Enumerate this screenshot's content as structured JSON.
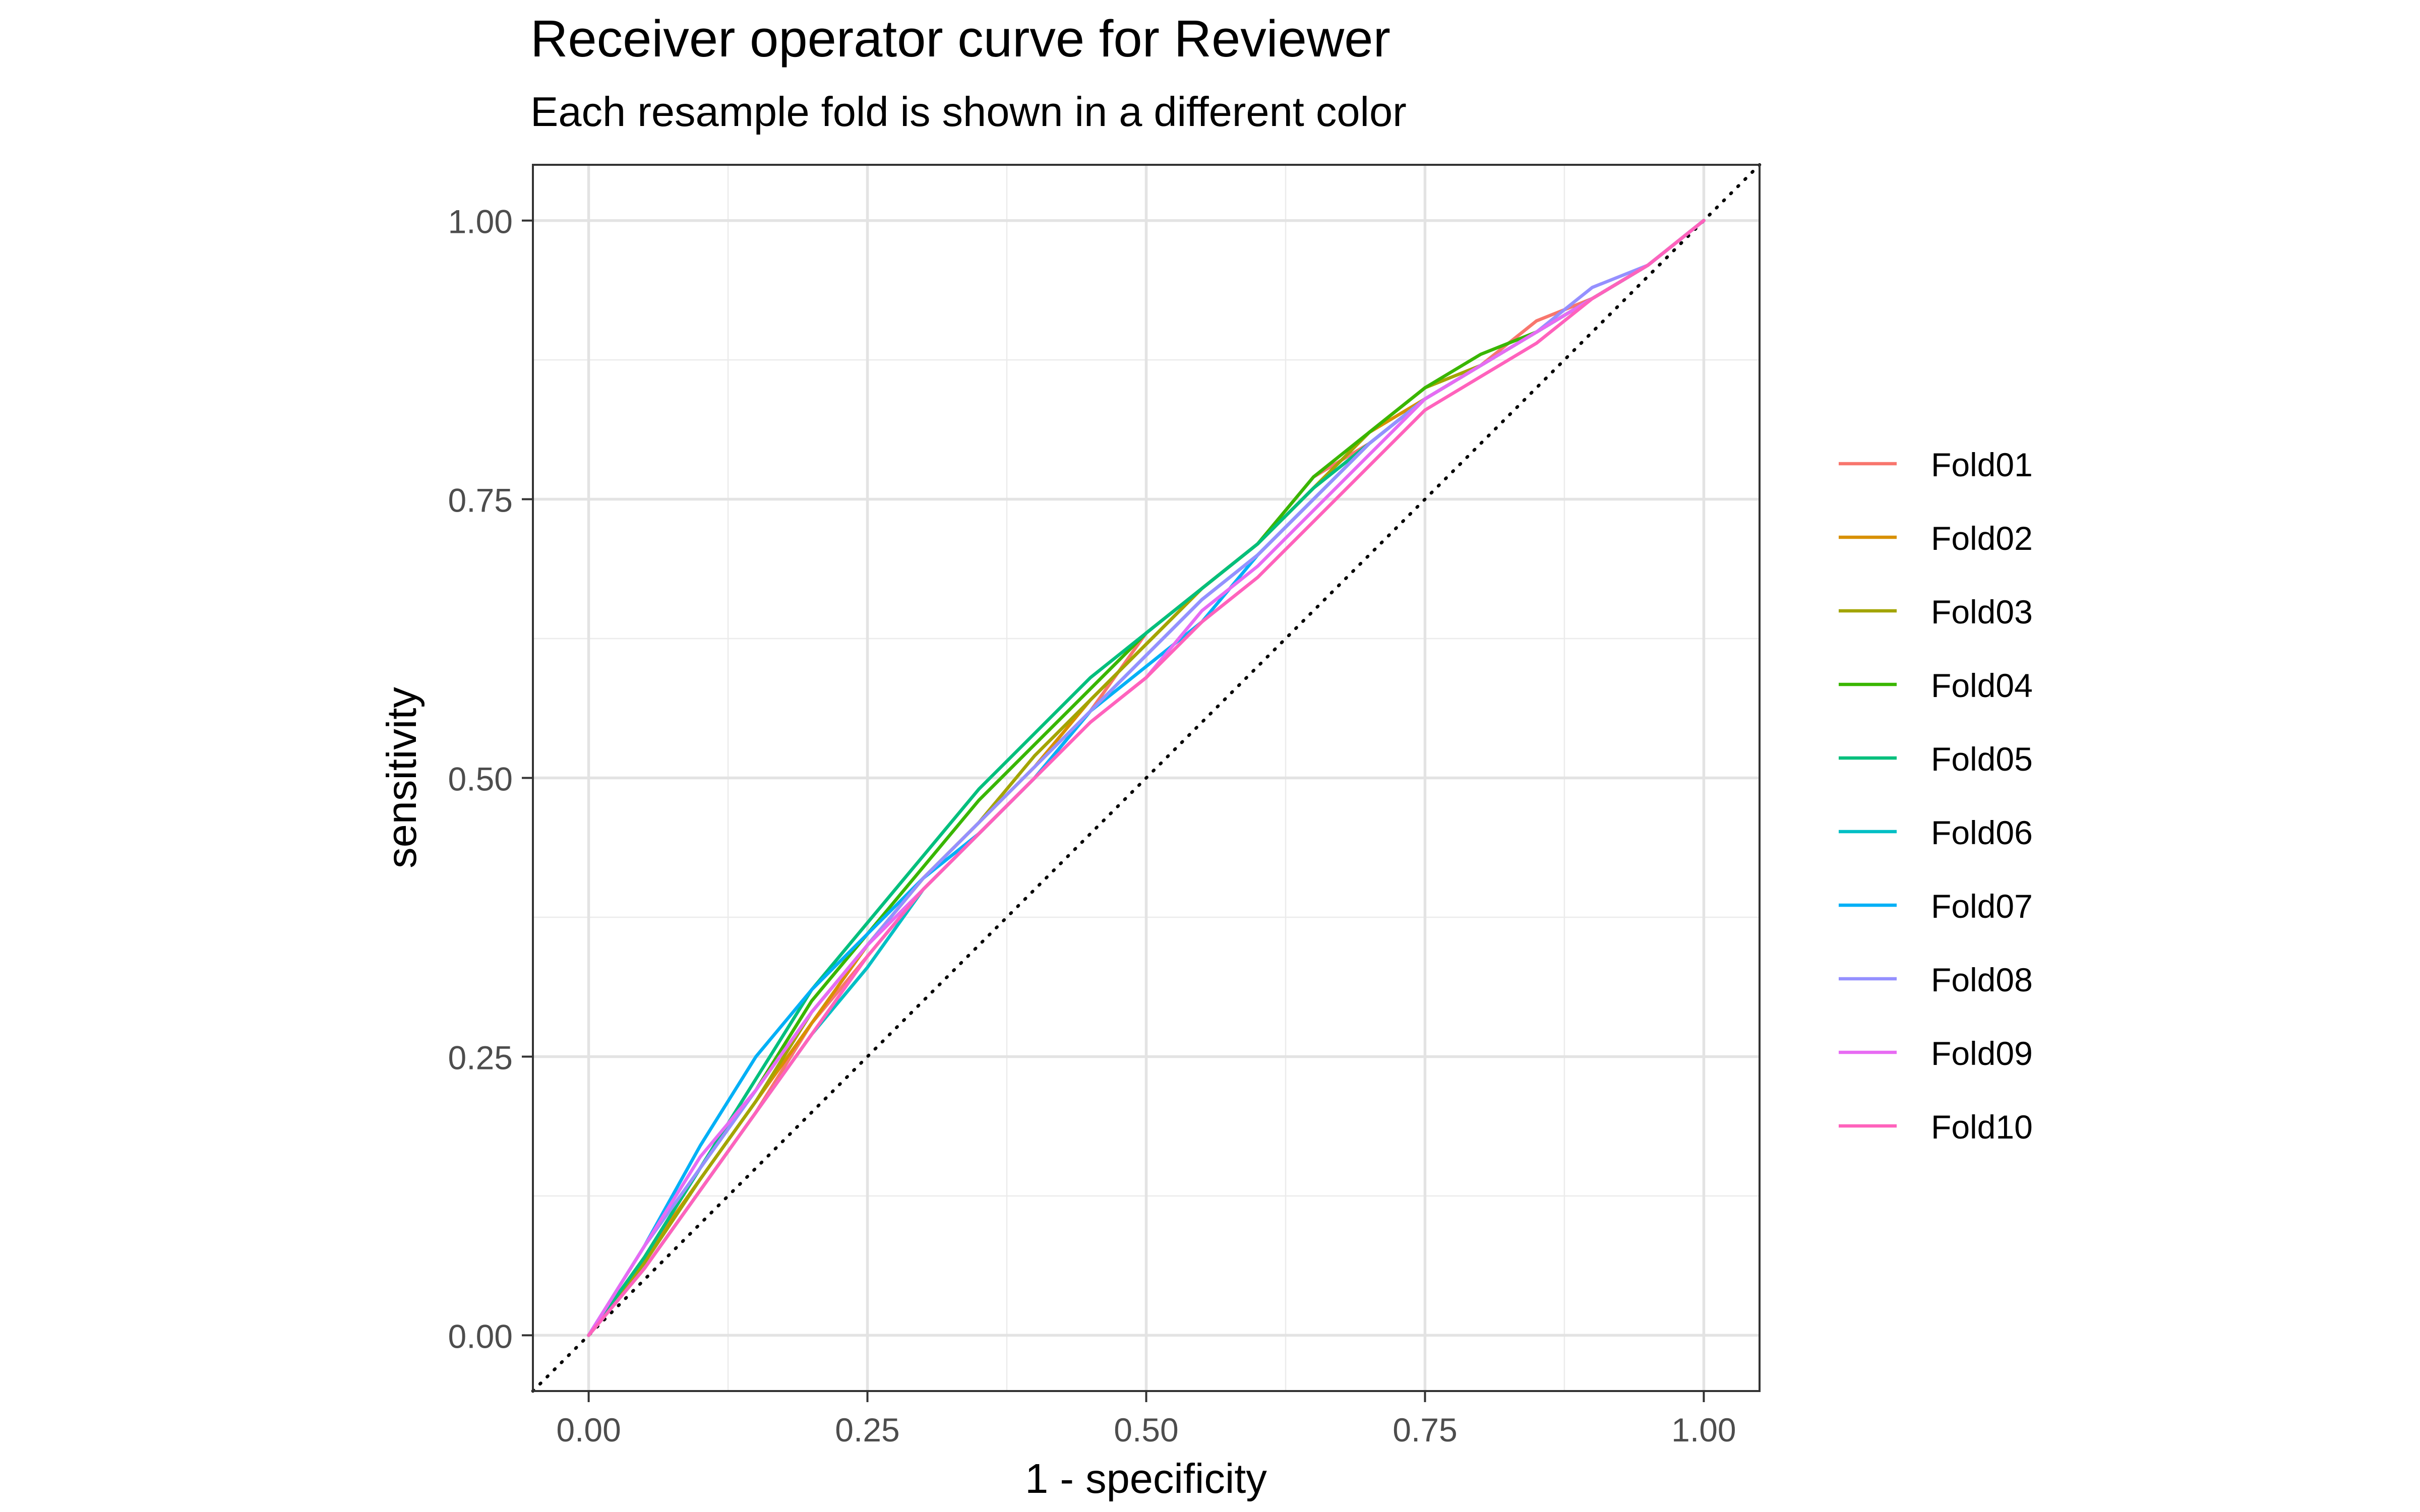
{
  "chart_data": {
    "type": "line",
    "title": "Receiver operator curve for Reviewer",
    "subtitle": "Each resample fold is shown in a different color",
    "xlabel": "1 - specificity",
    "ylabel": "sensitivity",
    "xlim": [
      -0.05,
      1.05
    ],
    "ylim": [
      -0.05,
      1.05
    ],
    "x_ticks": [
      "0.00",
      "0.25",
      "0.50",
      "0.75",
      "1.00"
    ],
    "y_ticks": [
      "0.00",
      "0.25",
      "0.50",
      "0.75",
      "1.00"
    ],
    "grid": true,
    "legend_position": "right",
    "reference_line": {
      "style": "dotted",
      "from": [
        -0.05,
        -0.05
      ],
      "to": [
        1.05,
        1.05
      ]
    },
    "series": [
      {
        "name": "Fold01",
        "color": "#F8766D",
        "x": [
          0,
          0.05,
          0.1,
          0.15,
          0.2,
          0.25,
          0.3,
          0.35,
          0.4,
          0.45,
          0.5,
          0.55,
          0.6,
          0.65,
          0.7,
          0.75,
          0.8,
          0.85,
          0.9,
          0.95,
          1
        ],
        "y": [
          0,
          0.06,
          0.13,
          0.2,
          0.28,
          0.34,
          0.4,
          0.45,
          0.5,
          0.56,
          0.63,
          0.67,
          0.71,
          0.77,
          0.8,
          0.84,
          0.87,
          0.91,
          0.93,
          0.96,
          1
        ]
      },
      {
        "name": "Fold02",
        "color": "#D89000",
        "x": [
          0,
          0.05,
          0.1,
          0.15,
          0.2,
          0.25,
          0.3,
          0.35,
          0.4,
          0.45,
          0.5,
          0.55,
          0.6,
          0.65,
          0.7,
          0.75,
          0.8,
          0.85,
          0.9,
          0.95,
          1
        ],
        "y": [
          0,
          0.07,
          0.14,
          0.21,
          0.28,
          0.35,
          0.41,
          0.46,
          0.51,
          0.57,
          0.62,
          0.67,
          0.71,
          0.76,
          0.81,
          0.84,
          0.87,
          0.9,
          0.93,
          0.96,
          1
        ]
      },
      {
        "name": "Fold03",
        "color": "#A3A500",
        "x": [
          0,
          0.05,
          0.1,
          0.15,
          0.2,
          0.25,
          0.3,
          0.35,
          0.4,
          0.45,
          0.5,
          0.55,
          0.6,
          0.65,
          0.7,
          0.75,
          0.8,
          0.85,
          0.9,
          0.95,
          1
        ],
        "y": [
          0,
          0.065,
          0.14,
          0.21,
          0.29,
          0.35,
          0.41,
          0.46,
          0.52,
          0.57,
          0.62,
          0.67,
          0.71,
          0.76,
          0.81,
          0.85,
          0.87,
          0.9,
          0.93,
          0.96,
          1
        ]
      },
      {
        "name": "Fold04",
        "color": "#39B600",
        "x": [
          0,
          0.05,
          0.1,
          0.15,
          0.2,
          0.25,
          0.3,
          0.35,
          0.4,
          0.45,
          0.5,
          0.55,
          0.6,
          0.65,
          0.7,
          0.75,
          0.8,
          0.85,
          0.9,
          0.95,
          1
        ],
        "y": [
          0,
          0.07,
          0.15,
          0.22,
          0.3,
          0.36,
          0.42,
          0.48,
          0.53,
          0.58,
          0.63,
          0.67,
          0.71,
          0.77,
          0.81,
          0.85,
          0.88,
          0.9,
          0.93,
          0.96,
          1
        ]
      },
      {
        "name": "Fold05",
        "color": "#00BF7D",
        "x": [
          0,
          0.05,
          0.1,
          0.15,
          0.2,
          0.25,
          0.3,
          0.35,
          0.4,
          0.45,
          0.5,
          0.55,
          0.6,
          0.65,
          0.7,
          0.75,
          0.8,
          0.85,
          0.9,
          0.95,
          1
        ],
        "y": [
          0,
          0.07,
          0.15,
          0.23,
          0.31,
          0.37,
          0.43,
          0.49,
          0.54,
          0.59,
          0.63,
          0.67,
          0.71,
          0.76,
          0.8,
          0.84,
          0.87,
          0.9,
          0.93,
          0.96,
          1
        ]
      },
      {
        "name": "Fold06",
        "color": "#00BFC4",
        "x": [
          0,
          0.05,
          0.1,
          0.15,
          0.2,
          0.25,
          0.3,
          0.35,
          0.4,
          0.45,
          0.5,
          0.55,
          0.6,
          0.65,
          0.7,
          0.75,
          0.8,
          0.85,
          0.9,
          0.95,
          1
        ],
        "y": [
          0,
          0.06,
          0.13,
          0.2,
          0.27,
          0.33,
          0.4,
          0.45,
          0.5,
          0.56,
          0.61,
          0.66,
          0.7,
          0.75,
          0.8,
          0.84,
          0.87,
          0.9,
          0.93,
          0.96,
          1
        ]
      },
      {
        "name": "Fold07",
        "color": "#00B0F6",
        "x": [
          0,
          0.05,
          0.1,
          0.15,
          0.2,
          0.25,
          0.3,
          0.35,
          0.4,
          0.45,
          0.5,
          0.55,
          0.6,
          0.65,
          0.7,
          0.75,
          0.8,
          0.85,
          0.9,
          0.95,
          1
        ],
        "y": [
          0,
          0.08,
          0.17,
          0.25,
          0.31,
          0.36,
          0.41,
          0.45,
          0.5,
          0.56,
          0.6,
          0.64,
          0.7,
          0.75,
          0.8,
          0.84,
          0.87,
          0.9,
          0.93,
          0.96,
          1
        ]
      },
      {
        "name": "Fold08",
        "color": "#9590FF",
        "x": [
          0,
          0.05,
          0.1,
          0.15,
          0.2,
          0.25,
          0.3,
          0.35,
          0.4,
          0.45,
          0.5,
          0.55,
          0.6,
          0.65,
          0.7,
          0.75,
          0.8,
          0.85,
          0.9,
          0.95,
          1
        ],
        "y": [
          0,
          0.08,
          0.15,
          0.22,
          0.29,
          0.35,
          0.41,
          0.46,
          0.51,
          0.56,
          0.61,
          0.66,
          0.7,
          0.75,
          0.8,
          0.84,
          0.87,
          0.9,
          0.94,
          0.96,
          1
        ]
      },
      {
        "name": "Fold09",
        "color": "#E76BF3",
        "x": [
          0,
          0.05,
          0.1,
          0.15,
          0.2,
          0.25,
          0.3,
          0.35,
          0.4,
          0.45,
          0.5,
          0.55,
          0.6,
          0.65,
          0.7,
          0.75,
          0.8,
          0.85,
          0.9,
          0.95,
          1
        ],
        "y": [
          0,
          0.08,
          0.16,
          0.22,
          0.29,
          0.35,
          0.4,
          0.45,
          0.5,
          0.55,
          0.59,
          0.65,
          0.69,
          0.74,
          0.79,
          0.84,
          0.87,
          0.9,
          0.93,
          0.96,
          1
        ]
      },
      {
        "name": "Fold10",
        "color": "#FF62BC",
        "x": [
          0,
          0.05,
          0.1,
          0.15,
          0.2,
          0.25,
          0.3,
          0.35,
          0.4,
          0.45,
          0.5,
          0.55,
          0.6,
          0.65,
          0.7,
          0.75,
          0.8,
          0.85,
          0.9,
          0.95,
          1
        ],
        "y": [
          0,
          0.06,
          0.13,
          0.2,
          0.27,
          0.34,
          0.4,
          0.45,
          0.5,
          0.55,
          0.59,
          0.64,
          0.68,
          0.73,
          0.78,
          0.83,
          0.86,
          0.89,
          0.93,
          0.96,
          1
        ]
      }
    ]
  }
}
